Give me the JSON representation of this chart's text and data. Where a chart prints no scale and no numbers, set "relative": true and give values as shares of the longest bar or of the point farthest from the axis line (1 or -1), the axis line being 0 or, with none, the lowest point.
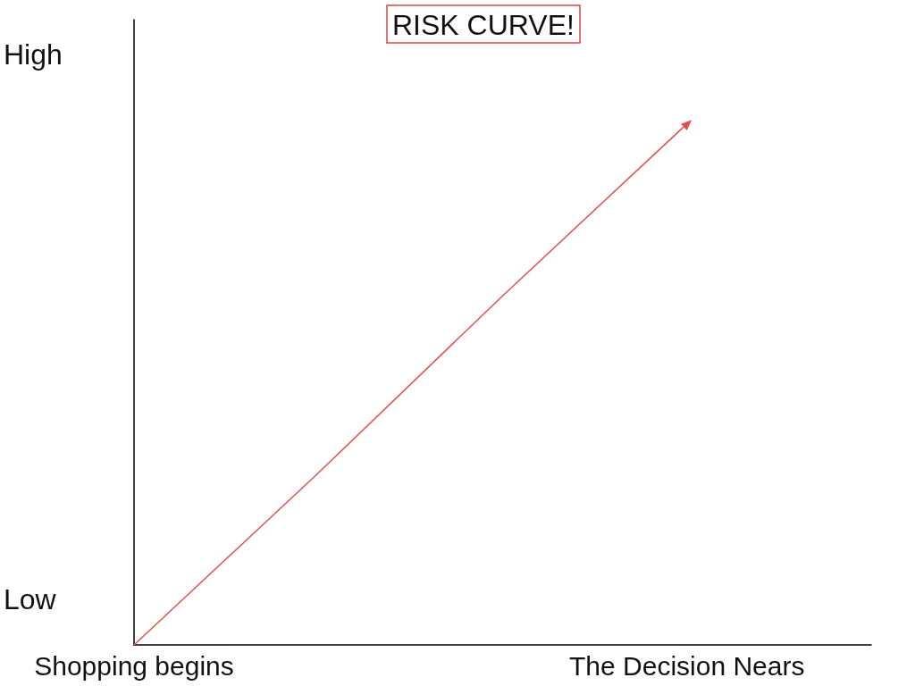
{
  "chart_data": {
    "type": "line",
    "title": "RISK CURVE!",
    "relative": true,
    "categories": [
      "Shopping begins",
      null,
      null,
      "The Decision Nears",
      null
    ],
    "values": [
      0,
      0.33,
      0.67,
      1,
      null
    ],
    "color": "#e05252",
    "annotations": [
      "High",
      "Low"
    ]
  }
}
